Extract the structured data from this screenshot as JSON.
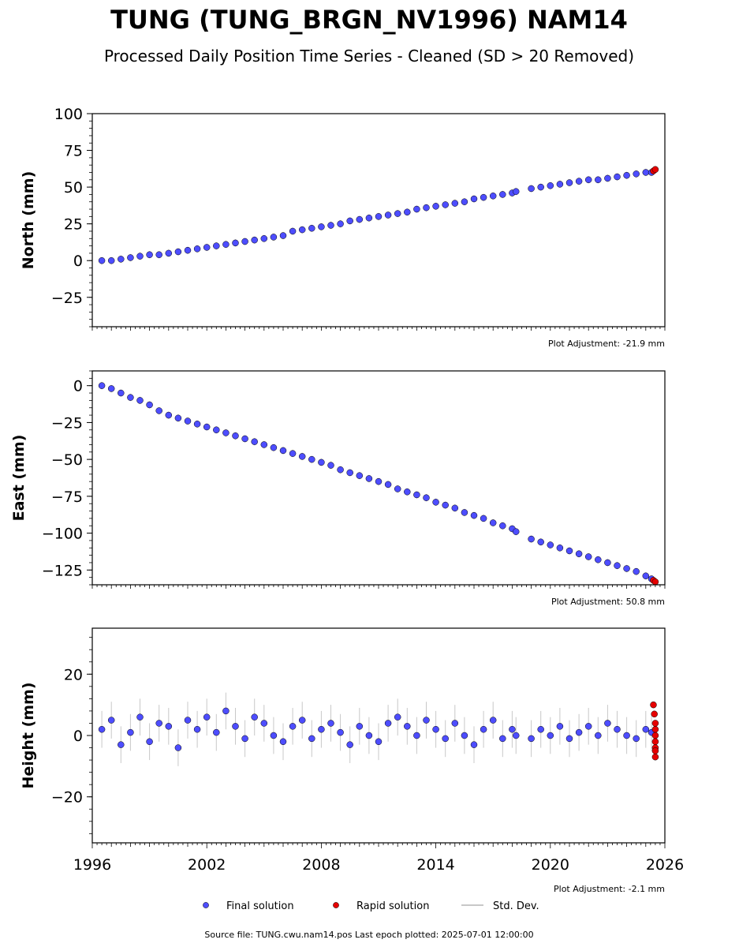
{
  "header": {
    "title": "TUNG (TUNG_BRGN_NV1996) NAM14",
    "subtitle": "Processed Daily Position Time Series - Cleaned (SD > 20 Removed)"
  },
  "legend": {
    "final": "Final solution",
    "rapid": "Rapid solution",
    "std": "Std. Dev."
  },
  "footer": "Source file: TUNG.cwu.nam14.pos  Last epoch plotted: 2025-07-01 12:00:00",
  "colors": {
    "final": "#4d4dff",
    "rapid": "#e60000",
    "std": "#c8c8c8",
    "edge": "#000000"
  },
  "chart_data": [
    {
      "type": "scatter",
      "ylabel": "North (mm)",
      "xlim": [
        1996,
        2026
      ],
      "ylim": [
        -45,
        100
      ],
      "yticks": [
        -25,
        0,
        25,
        50,
        75,
        100
      ],
      "adjustment": "Plot Adjustment: -21.9 mm",
      "series": [
        {
          "name": "Final solution",
          "x": [
            1996.5,
            1997.0,
            1997.5,
            1998.0,
            1998.5,
            1999.0,
            1999.5,
            2000.0,
            2000.5,
            2001.0,
            2001.5,
            2002.0,
            2002.5,
            2003.0,
            2003.5,
            2004.0,
            2004.5,
            2005.0,
            2005.5,
            2006.0,
            2006.5,
            2007.0,
            2007.5,
            2008.0,
            2008.5,
            2009.0,
            2009.5,
            2010.0,
            2010.5,
            2011.0,
            2011.5,
            2012.0,
            2012.5,
            2013.0,
            2013.5,
            2014.0,
            2014.5,
            2015.0,
            2015.5,
            2016.0,
            2016.5,
            2017.0,
            2017.5,
            2018.0,
            2018.2,
            2019.0,
            2019.5,
            2020.0,
            2020.5,
            2021.0,
            2021.5,
            2022.0,
            2022.5,
            2023.0,
            2023.5,
            2024.0,
            2024.5,
            2025.0,
            2025.3
          ],
          "y": [
            0,
            0,
            1,
            2,
            3,
            4,
            4,
            5,
            6,
            7,
            8,
            9,
            10,
            11,
            12,
            13,
            14,
            15,
            16,
            17,
            20,
            21,
            22,
            23,
            24,
            25,
            27,
            28,
            29,
            30,
            31,
            32,
            33,
            35,
            36,
            37,
            38,
            39,
            40,
            42,
            43,
            44,
            45,
            46,
            47,
            49,
            50,
            51,
            52,
            53,
            54,
            55,
            55,
            56,
            57,
            58,
            59,
            60,
            60
          ]
        },
        {
          "name": "Rapid solution",
          "x": [
            2025.4,
            2025.5
          ],
          "y": [
            61,
            62
          ]
        }
      ]
    },
    {
      "type": "scatter",
      "ylabel": "East (mm)",
      "xlim": [
        1996,
        2026
      ],
      "ylim": [
        -135,
        10
      ],
      "yticks": [
        -125,
        -100,
        -75,
        -50,
        -25,
        0
      ],
      "adjustment": "Plot Adjustment: 50.8 mm",
      "series": [
        {
          "name": "Final solution",
          "x": [
            1996.5,
            1997.0,
            1997.5,
            1998.0,
            1998.5,
            1999.0,
            1999.5,
            2000.0,
            2000.5,
            2001.0,
            2001.5,
            2002.0,
            2002.5,
            2003.0,
            2003.5,
            2004.0,
            2004.5,
            2005.0,
            2005.5,
            2006.0,
            2006.5,
            2007.0,
            2007.5,
            2008.0,
            2008.5,
            2009.0,
            2009.5,
            2010.0,
            2010.5,
            2011.0,
            2011.5,
            2012.0,
            2012.5,
            2013.0,
            2013.5,
            2014.0,
            2014.5,
            2015.0,
            2015.5,
            2016.0,
            2016.5,
            2017.0,
            2017.5,
            2018.0,
            2018.2,
            2019.0,
            2019.5,
            2020.0,
            2020.5,
            2021.0,
            2021.5,
            2022.0,
            2022.5,
            2023.0,
            2023.5,
            2024.0,
            2024.5,
            2025.0,
            2025.3
          ],
          "y": [
            0,
            -2,
            -5,
            -8,
            -10,
            -13,
            -17,
            -20,
            -22,
            -24,
            -26,
            -28,
            -30,
            -32,
            -34,
            -36,
            -38,
            -40,
            -42,
            -44,
            -46,
            -48,
            -50,
            -52,
            -54,
            -57,
            -59,
            -61,
            -63,
            -65,
            -67,
            -70,
            -72,
            -74,
            -76,
            -79,
            -81,
            -83,
            -86,
            -88,
            -90,
            -93,
            -95,
            -97,
            -99,
            -104,
            -106,
            -108,
            -110,
            -112,
            -114,
            -116,
            -118,
            -120,
            -122,
            -124,
            -126,
            -129,
            -131
          ]
        },
        {
          "name": "Rapid solution",
          "x": [
            2025.4,
            2025.5
          ],
          "y": [
            -132,
            -133
          ]
        }
      ]
    },
    {
      "type": "scatter",
      "ylabel": "Height (mm)",
      "xlim": [
        1996,
        2026
      ],
      "ylim": [
        -35,
        35
      ],
      "yticks": [
        -20,
        0,
        20
      ],
      "xticks": [
        1996,
        2002,
        2008,
        2014,
        2020,
        2026
      ],
      "adjustment": "Plot Adjustment: -2.1 mm",
      "series": [
        {
          "name": "Final solution",
          "x": [
            1996.5,
            1997.0,
            1997.5,
            1998.0,
            1998.5,
            1999.0,
            1999.5,
            2000.0,
            2000.5,
            2001.0,
            2001.5,
            2002.0,
            2002.5,
            2003.0,
            2003.5,
            2004.0,
            2004.5,
            2005.0,
            2005.5,
            2006.0,
            2006.5,
            2007.0,
            2007.5,
            2008.0,
            2008.5,
            2009.0,
            2009.5,
            2010.0,
            2010.5,
            2011.0,
            2011.5,
            2012.0,
            2012.5,
            2013.0,
            2013.5,
            2014.0,
            2014.5,
            2015.0,
            2015.5,
            2016.0,
            2016.5,
            2017.0,
            2017.5,
            2018.0,
            2018.2,
            2019.0,
            2019.5,
            2020.0,
            2020.5,
            2021.0,
            2021.5,
            2022.0,
            2022.5,
            2023.0,
            2023.5,
            2024.0,
            2024.5,
            2025.0,
            2025.3
          ],
          "y": [
            2,
            5,
            -3,
            1,
            6,
            -2,
            4,
            3,
            -4,
            5,
            2,
            6,
            1,
            8,
            3,
            -1,
            6,
            4,
            0,
            -2,
            3,
            5,
            -1,
            2,
            4,
            1,
            -3,
            3,
            0,
            -2,
            4,
            6,
            3,
            0,
            5,
            2,
            -1,
            4,
            0,
            -3,
            2,
            5,
            -1,
            2,
            0,
            -1,
            2,
            0,
            3,
            -1,
            1,
            3,
            0,
            4,
            2,
            0,
            -1,
            2,
            1
          ]
        },
        {
          "name": "Rapid solution",
          "x": [
            2025.4,
            2025.45,
            2025.5,
            2025.5,
            2025.5,
            2025.5,
            2025.5,
            2025.5,
            2025.5
          ],
          "y": [
            10,
            7,
            4,
            2,
            0,
            -2,
            -4,
            -5,
            -7
          ]
        }
      ]
    }
  ]
}
